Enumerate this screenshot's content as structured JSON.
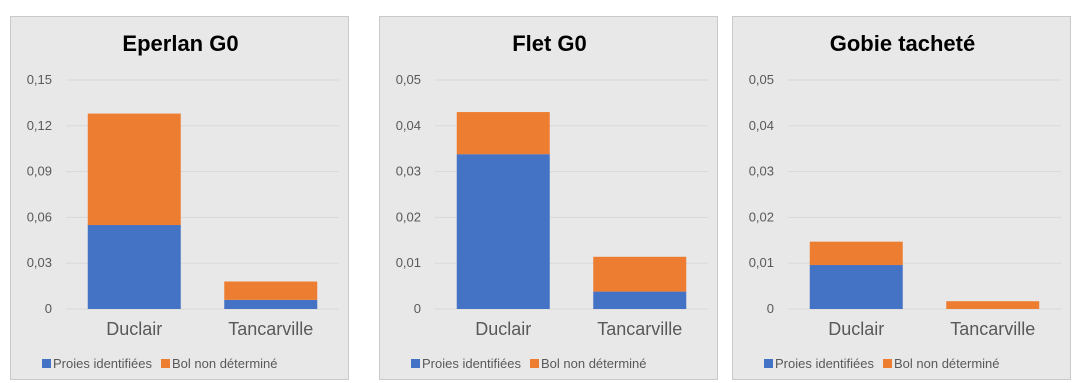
{
  "colors": {
    "series1": "#4472c4",
    "series2": "#ed7d31",
    "grid": "#d9d9d9",
    "text": "#595959",
    "title": "#000000"
  },
  "chart_data": [
    {
      "type": "bar",
      "stacked": true,
      "title": "Eperlan G0",
      "categories": [
        "Duclair",
        "Tancarville"
      ],
      "series": [
        {
          "name": "Proies identifiées",
          "values": [
            0.055,
            0.006
          ]
        },
        {
          "name": "Bol non déterminé",
          "values": [
            0.073,
            0.012
          ]
        }
      ],
      "ylim": [
        0,
        0.15
      ],
      "yticks": [
        "0",
        "0,03",
        "0,06",
        "0,09",
        "0,12",
        "0,15"
      ],
      "grid": true,
      "legend": "bottom"
    },
    {
      "type": "bar",
      "stacked": true,
      "title": "Flet G0",
      "categories": [
        "Duclair",
        "Tancarville"
      ],
      "series": [
        {
          "name": "Proies identifiées",
          "values": [
            0.0338,
            0.0038
          ]
        },
        {
          "name": "Bol non déterminé",
          "values": [
            0.0092,
            0.0076
          ]
        }
      ],
      "ylim": [
        0,
        0.05
      ],
      "yticks": [
        "0",
        "0,01",
        "0,02",
        "0,03",
        "0,04",
        "0,05"
      ],
      "grid": true,
      "legend": "bottom"
    },
    {
      "type": "bar",
      "stacked": true,
      "title": "Gobie tacheté",
      "categories": [
        "Duclair",
        "Tancarville"
      ],
      "series": [
        {
          "name": "Proies identifiées",
          "values": [
            0.0096,
            0.0
          ]
        },
        {
          "name": "Bol non déterminé",
          "values": [
            0.0051,
            0.0017
          ]
        }
      ],
      "ylim": [
        0,
        0.05
      ],
      "yticks": [
        "0",
        "0,01",
        "0,02",
        "0,03",
        "0,04",
        "0,05"
      ],
      "grid": true,
      "legend": "bottom"
    }
  ]
}
